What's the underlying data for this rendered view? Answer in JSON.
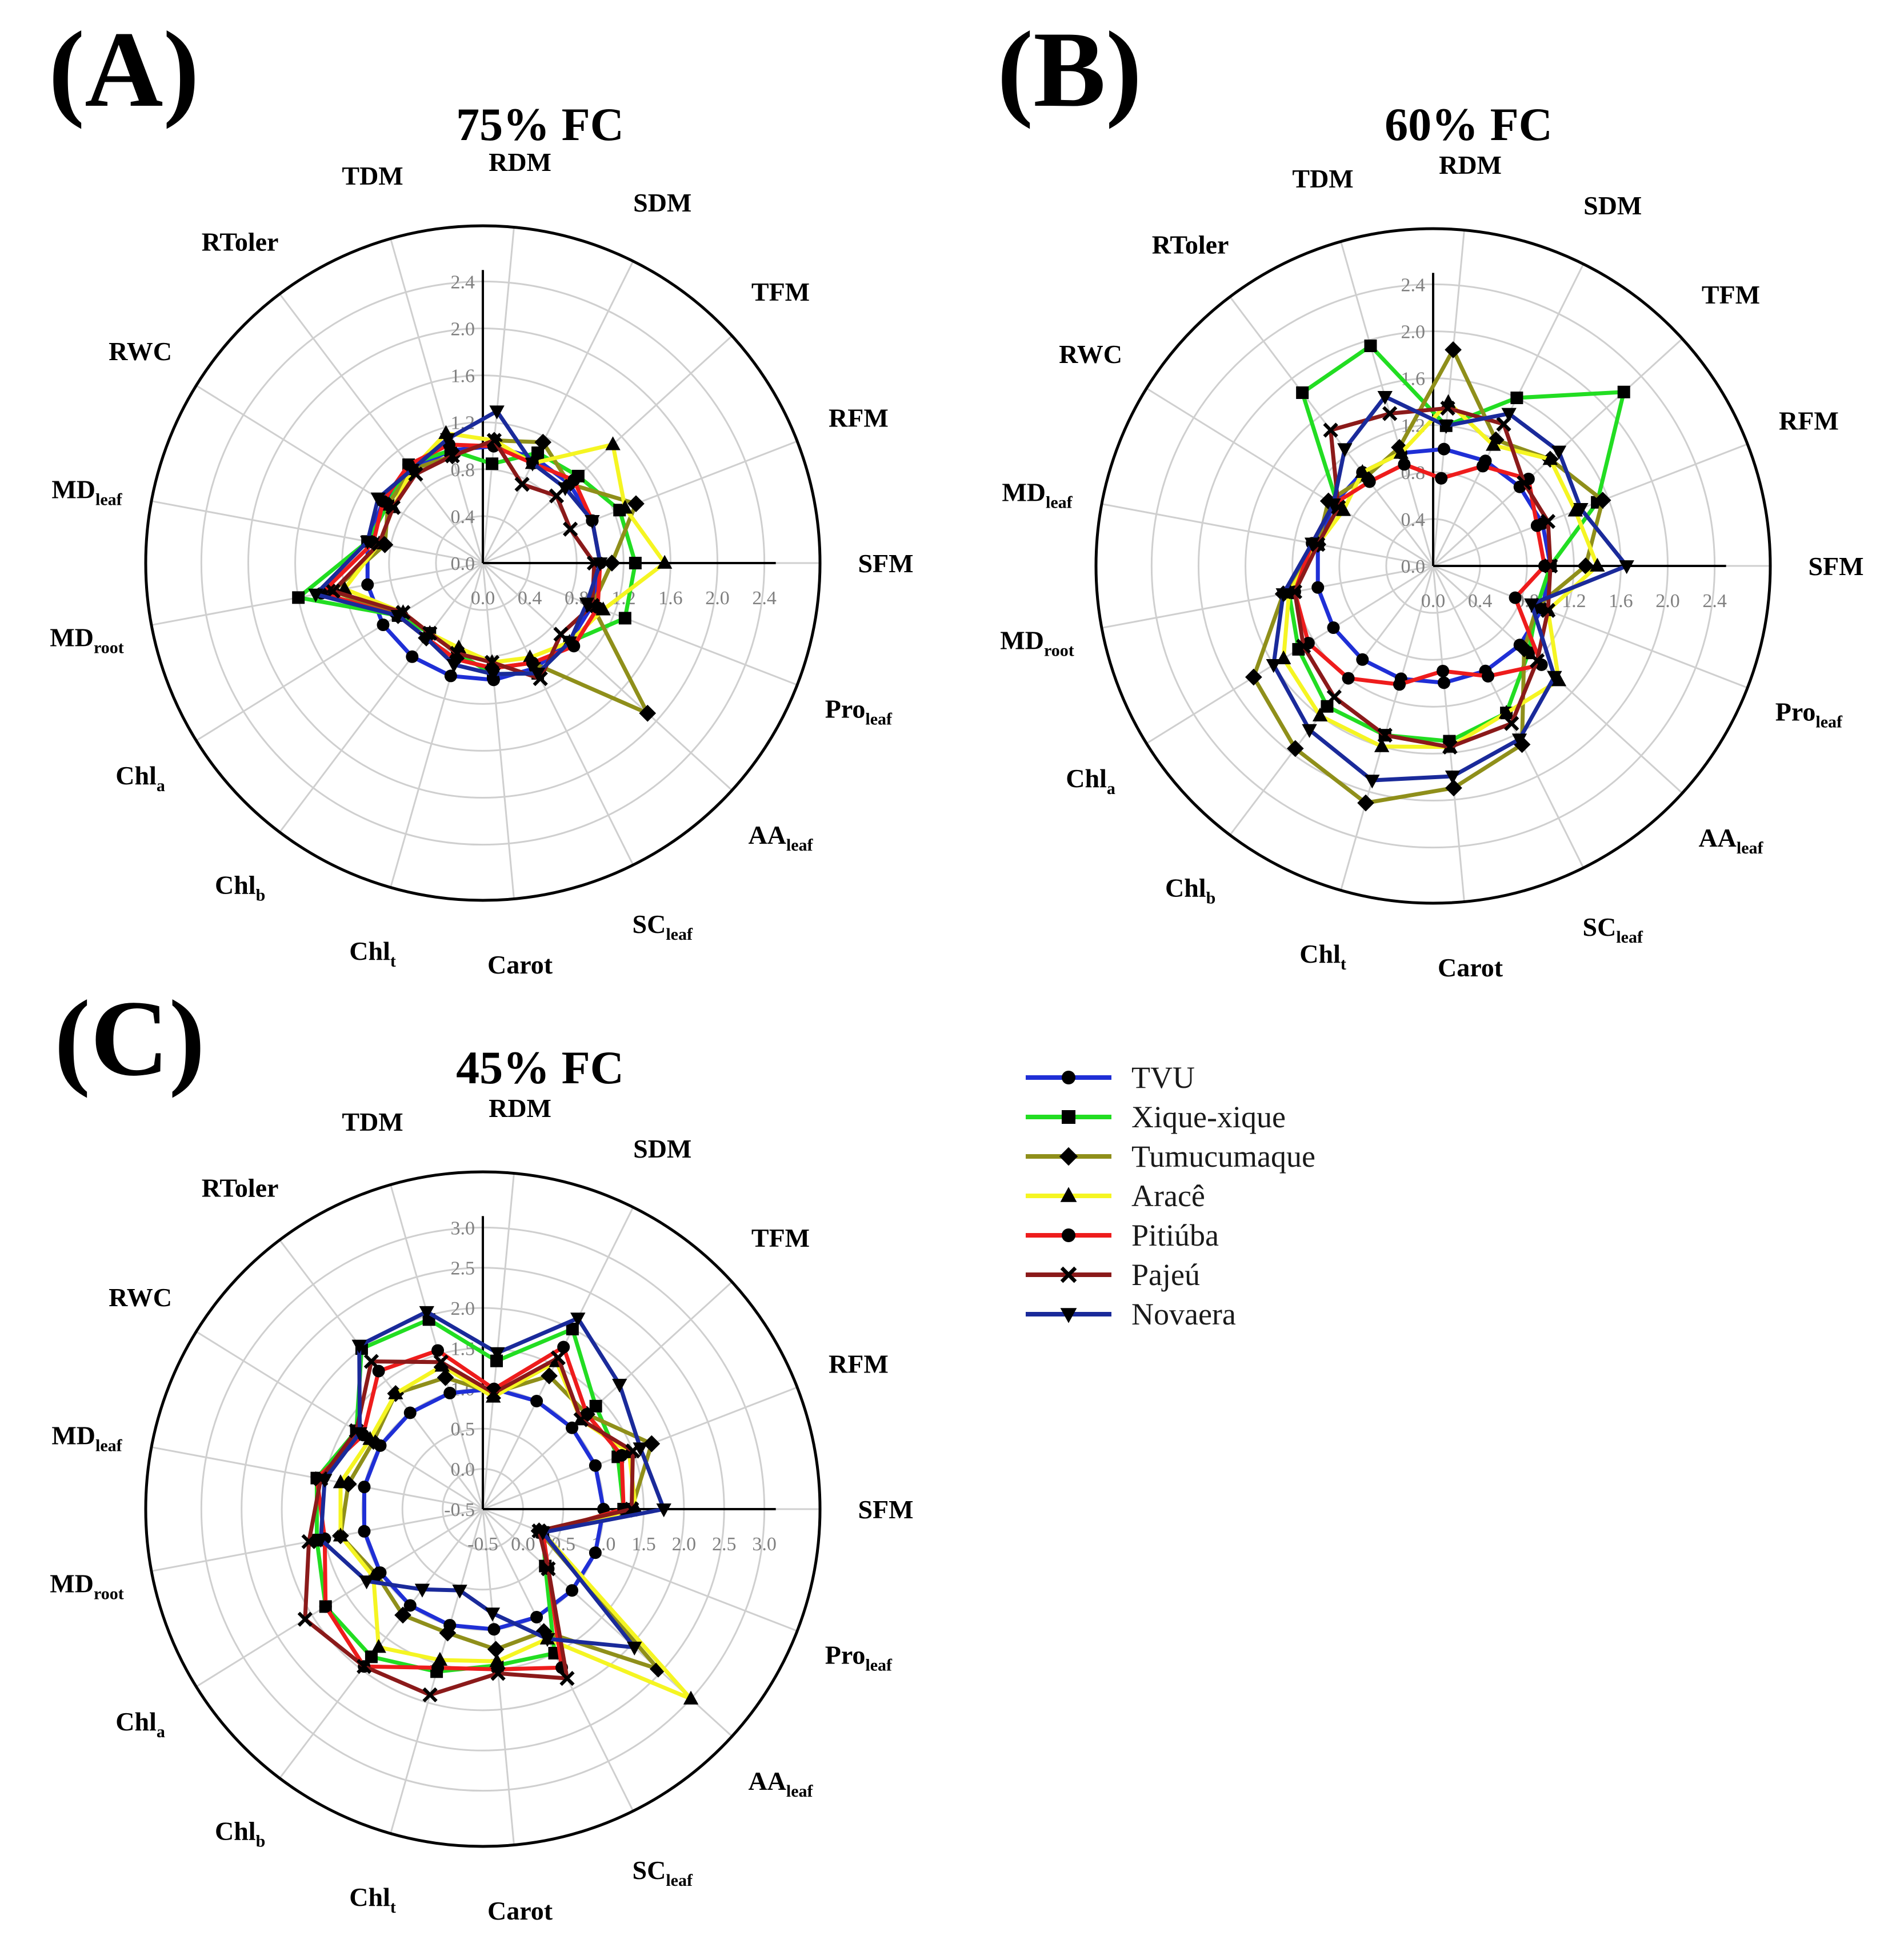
{
  "axes": [
    "SFM",
    "RFM",
    "TFM",
    "SDM",
    "RDM",
    "TDM",
    "RToler",
    "RWC",
    "MD|leaf",
    "MD|root",
    "Chl|a",
    "Chl|b",
    "Chl|t",
    "Carot",
    "SC|leaf",
    "AA|leaf",
    "Pro|leaf"
  ],
  "series_meta": [
    {
      "name": "TVU",
      "color": "#1f2fd6",
      "marker": "circle"
    },
    {
      "name": "Xique-xique",
      "color": "#22dd22",
      "marker": "square"
    },
    {
      "name": "Tumucumaque",
      "color": "#8f8f1a",
      "marker": "diamond"
    },
    {
      "name": "Aracê",
      "color": "#f5f522",
      "marker": "triangle-up"
    },
    {
      "name": "Pitiúba",
      "color": "#ee1c1c",
      "marker": "circle"
    },
    {
      "name": "Pajeú",
      "color": "#8b1a1a",
      "marker": "x"
    },
    {
      "name": "Novaera",
      "color": "#1a2a9a",
      "marker": "triangle-down"
    }
  ],
  "chart_data": [
    {
      "type": "radar",
      "panel": "(A)",
      "title": "75% FC",
      "rmin": 0.0,
      "rmax": 2.4,
      "ticks": [
        "0.0",
        "0.4",
        "0.8",
        "1.2",
        "1.6",
        "2.0",
        "2.4"
      ],
      "tick_values": [
        0.0,
        0.4,
        0.8,
        1.2,
        1.6,
        2.0,
        2.4
      ],
      "series": [
        {
          "name": "TVU",
          "values": [
            1.0,
            1.0,
            1.0,
            1.0,
            1.0,
            1.0,
            1.0,
            1.0,
            1.0,
            1.0,
            1.0,
            1.0,
            1.0,
            1.0,
            1.0,
            1.0,
            1.0
          ]
        },
        {
          "name": "Xique-xique",
          "values": [
            1.3,
            1.25,
            1.1,
            1.05,
            0.85,
            1.0,
            1.05,
            0.95,
            1.0,
            1.6,
            0.85,
            0.75,
            0.8,
            0.95,
            1.05,
            1.0,
            1.3
          ]
        },
        {
          "name": "Tumucumaque",
          "values": [
            1.1,
            1.4,
            1.0,
            1.15,
            1.05,
            0.95,
            1.0,
            0.95,
            0.85,
            1.3,
            0.85,
            0.8,
            0.85,
            0.9,
            0.95,
            1.9,
            1.0
          ]
        },
        {
          "name": "Aracê",
          "values": [
            1.55,
            1.3,
            1.5,
            0.95,
            1.05,
            1.15,
            1.0,
            0.9,
            0.9,
            1.2,
            0.8,
            0.75,
            0.75,
            0.85,
            0.9,
            1.0,
            1.1
          ]
        },
        {
          "name": "Pitiúba",
          "values": [
            1.0,
            1.0,
            1.05,
            0.95,
            1.0,
            1.05,
            1.05,
            1.0,
            0.95,
            1.4,
            0.85,
            0.8,
            0.85,
            0.9,
            0.95,
            1.05,
            1.05
          ]
        },
        {
          "name": "Pajeú",
          "values": [
            0.95,
            0.8,
            0.85,
            0.75,
            1.05,
            0.95,
            0.95,
            0.9,
            0.9,
            1.3,
            0.8,
            0.75,
            0.8,
            0.85,
            1.1,
            0.9,
            1.0
          ]
        },
        {
          "name": "Novaera",
          "values": [
            1.0,
            1.0,
            0.95,
            0.95,
            1.3,
            1.1,
            1.0,
            1.05,
            1.0,
            1.45,
            0.85,
            0.8,
            0.9,
            0.95,
            1.05,
            1.0,
            0.95
          ]
        }
      ]
    },
    {
      "type": "radar",
      "panel": "(B)",
      "title": "60% FC",
      "rmin": 0.0,
      "rmax": 2.4,
      "ticks": [
        "0.0",
        "0.4",
        "0.8",
        "1.2",
        "1.6",
        "2.0",
        "2.4"
      ],
      "tick_values": [
        0.0,
        0.4,
        0.8,
        1.2,
        1.6,
        2.0,
        2.4
      ],
      "series": [
        {
          "name": "TVU",
          "values": [
            1.0,
            1.0,
            1.0,
            1.0,
            1.0,
            1.0,
            1.0,
            1.0,
            1.0,
            1.0,
            1.0,
            1.0,
            1.0,
            1.0,
            1.0,
            1.0,
            1.0
          ]
        },
        {
          "name": "Xique-xique",
          "values": [
            1.0,
            1.5,
            2.2,
            1.6,
            1.2,
            1.95,
            1.85,
            0.95,
            1.0,
            1.25,
            1.35,
            1.5,
            1.5,
            1.5,
            1.4,
            1.1,
            0.95
          ]
        },
        {
          "name": "Tumucumaque",
          "values": [
            1.3,
            1.55,
            1.35,
            1.2,
            1.85,
            1.05,
            0.95,
            1.05,
            1.0,
            1.3,
            1.8,
            1.95,
            2.1,
            1.9,
            1.7,
            1.05,
            0.95
          ]
        },
        {
          "name": "Aracê",
          "values": [
            1.4,
            1.3,
            1.35,
            1.15,
            1.4,
            1.0,
            1.0,
            0.9,
            1.0,
            1.25,
            1.5,
            1.6,
            1.6,
            1.55,
            1.4,
            1.45,
            1.05
          ]
        },
        {
          "name": "Pitiúba",
          "values": [
            0.95,
            0.95,
            1.1,
            0.95,
            0.75,
            0.9,
            0.9,
            1.0,
            1.05,
            1.2,
            1.25,
            1.2,
            1.05,
            0.9,
            1.05,
            1.25,
            0.75
          ]
        },
        {
          "name": "Pajeú",
          "values": [
            1.0,
            1.05,
            1.05,
            1.35,
            1.35,
            1.35,
            1.45,
            0.95,
            1.0,
            1.2,
            1.3,
            1.4,
            1.5,
            1.55,
            1.5,
            1.2,
            1.05
          ]
        },
        {
          "name": "Novaera",
          "values": [
            1.65,
            1.35,
            1.45,
            1.45,
            1.2,
            1.5,
            1.25,
            1.0,
            1.05,
            1.3,
            1.6,
            1.75,
            1.9,
            1.8,
            1.65,
            1.4,
            0.9
          ]
        }
      ]
    },
    {
      "type": "radar",
      "panel": "(C)",
      "title": "45% FC",
      "rmin": -0.5,
      "rmax": 3.0,
      "ticks": [
        "-0.5",
        "0.0",
        "0.5",
        "1.0",
        "1.5",
        "2.0",
        "2.5",
        "3.0"
      ],
      "tick_values": [
        -0.5,
        0.0,
        0.5,
        1.0,
        1.5,
        2.0,
        2.5,
        3.0
      ],
      "series": [
        {
          "name": "TVU",
          "values": [
            1.0,
            1.0,
            1.0,
            1.0,
            1.0,
            1.0,
            1.0,
            1.0,
            1.0,
            1.0,
            1.0,
            1.0,
            1.0,
            1.0,
            1.0,
            1.0,
            1.0
          ]
        },
        {
          "name": "Xique-xique",
          "values": [
            1.25,
            1.3,
            1.4,
            2.0,
            1.35,
            1.95,
            2.0,
            1.35,
            1.6,
            1.6,
            1.8,
            1.8,
            1.6,
            1.45,
            1.5,
            0.55,
            0.3
          ]
        },
        {
          "name": "Tumucumaque",
          "values": [
            1.35,
            1.75,
            1.25,
            1.35,
            0.95,
            1.2,
            1.3,
            1.1,
            1.2,
            1.3,
            1.05,
            1.15,
            1.1,
            1.25,
            1.2,
            2.45,
            0.25
          ]
        },
        {
          "name": "Aracê",
          "values": [
            1.4,
            1.45,
            1.15,
            1.55,
            0.9,
            1.35,
            1.3,
            1.15,
            1.3,
            1.3,
            1.1,
            1.65,
            1.45,
            1.4,
            1.3,
            3.0,
            0.3
          ]
        },
        {
          "name": "Pitiúba",
          "values": [
            1.25,
            1.35,
            1.25,
            1.75,
            1.0,
            1.55,
            1.65,
            1.25,
            1.6,
            1.5,
            1.8,
            1.95,
            1.55,
            1.5,
            1.7,
            0.6,
            0.3
          ]
        },
        {
          "name": "Pajeú",
          "values": [
            1.35,
            1.5,
            1.15,
            1.6,
            0.95,
            1.4,
            1.8,
            1.35,
            1.55,
            1.7,
            2.1,
            1.95,
            1.9,
            1.55,
            1.85,
            0.6,
            0.25
          ]
        },
        {
          "name": "Novaera",
          "values": [
            1.75,
            1.6,
            1.8,
            2.15,
            1.45,
            2.05,
            2.05,
            1.3,
            1.5,
            1.55,
            1.2,
            0.75,
            0.55,
            0.8,
            1.3,
            2.05,
            0.3
          ]
        }
      ]
    }
  ]
}
